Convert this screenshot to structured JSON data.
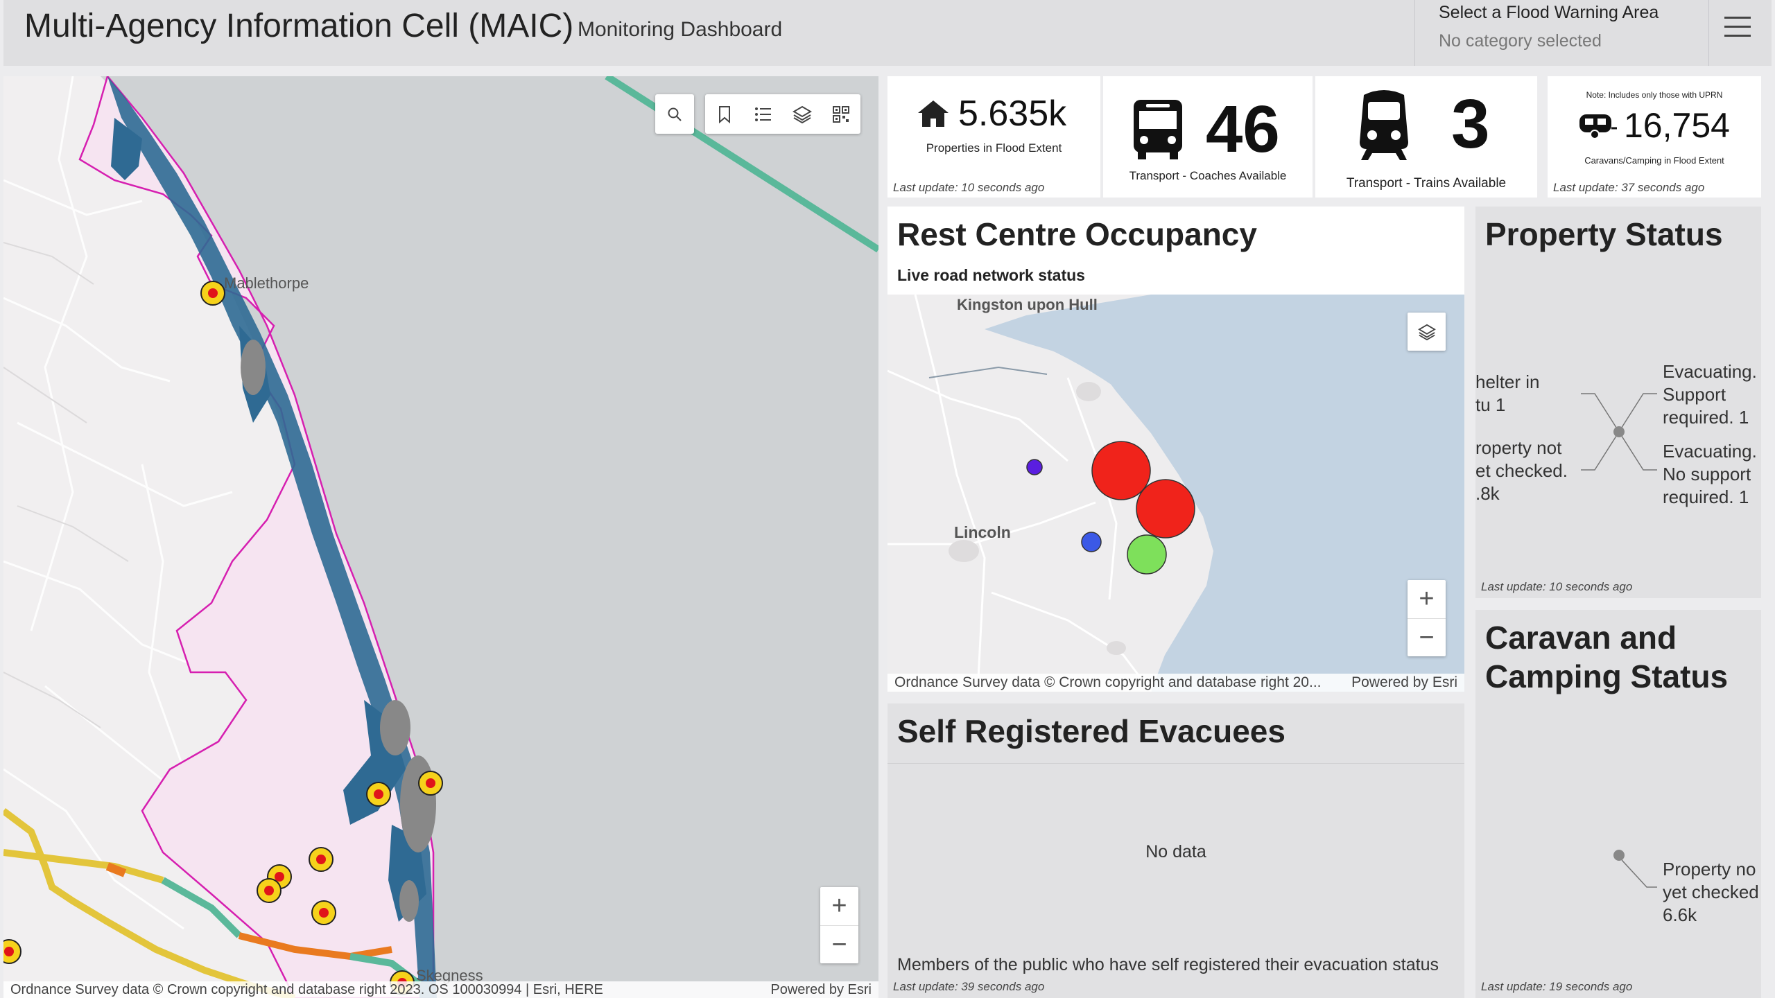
{
  "header": {
    "title": "Multi-Agency Information Cell (MAIC)",
    "subtitle": "Monitoring Dashboard",
    "area_label": "Select a Flood Warning Area",
    "area_value": "No category selected",
    "menu_icon": "hamburger-menu-icon"
  },
  "main_map": {
    "labels": {
      "mablethorpe": "Mablethorpe",
      "skegness": "Skegness"
    },
    "toolbar": [
      "search-icon",
      "bookmark-icon",
      "legend-list-icon",
      "layers-icon",
      "qr-code-icon"
    ],
    "zoom_in": "+",
    "zoom_out": "−",
    "attribution": "Ordnance Survey data © Crown copyright and database right 2023. OS 100030994 | Esri, HERE",
    "powered_by": "Powered by Esri",
    "colors": {
      "coast_flood": "#2f6a93",
      "boundary": "#d61fb0",
      "road_green": "#5ab89a",
      "road_yellow": "#e3c53b",
      "road_orange": "#e97a1f",
      "marker_ring": "#f6d21b",
      "marker_center": "#e0141a"
    }
  },
  "indicators": {
    "properties": {
      "icon": "house-icon",
      "value": "5.635k",
      "caption": "Properties in Flood Extent",
      "last_update": "Last update: 10 seconds ago"
    },
    "coaches": {
      "icon": "bus-icon",
      "value": "46",
      "caption": "Transport - Coaches Available"
    },
    "trains": {
      "icon": "train-icon",
      "value": "3",
      "caption": "Transport - Trains Available"
    },
    "caravans": {
      "icon": "caravan-icon",
      "note": "Note: Includes only those with UPRN",
      "value": "16,754",
      "caption": "Caravans/Camping in Flood Extent",
      "last_update": "Last update: 37 seconds ago"
    }
  },
  "rest_centre": {
    "title": "Rest Centre Occupancy",
    "subtitle": "Live road network status",
    "map_labels": {
      "hull": "Kingston upon Hull",
      "lincoln": "Lincoln"
    },
    "layers_icon": "layers-icon",
    "zoom_in": "+",
    "zoom_out": "−",
    "attribution": "Ordnance Survey data © Crown copyright and database right 20...",
    "powered_by": "Powered by Esri",
    "colors": {
      "large": "#f0231b",
      "medium_green": "#7ee05b",
      "small_blue": "#3b59e6",
      "small_purple": "#5a1ee0"
    }
  },
  "self_registered": {
    "title": "Self Registered Evacuees",
    "no_data": "No data",
    "description": "Members of the public who have self registered their evacuation status",
    "last_update": "Last update: 39 seconds ago"
  },
  "property_status": {
    "title": "Property Status",
    "left_labels": [
      [
        "helter in",
        "tu 1"
      ],
      [
        "roperty not",
        "et checked.",
        ".8k"
      ]
    ],
    "right_labels": [
      [
        "Evacuating.",
        "Support",
        "required. 1"
      ],
      [
        "Evacuating.",
        "No support",
        "required. 1"
      ]
    ],
    "last_update": "Last update: 10 seconds ago"
  },
  "caravan_status": {
    "title_line1": "Caravan and",
    "title_line2": "Camping Status",
    "label": [
      "Property no",
      "yet checked",
      "6.6k"
    ],
    "last_update": "Last update: 19 seconds ago"
  }
}
